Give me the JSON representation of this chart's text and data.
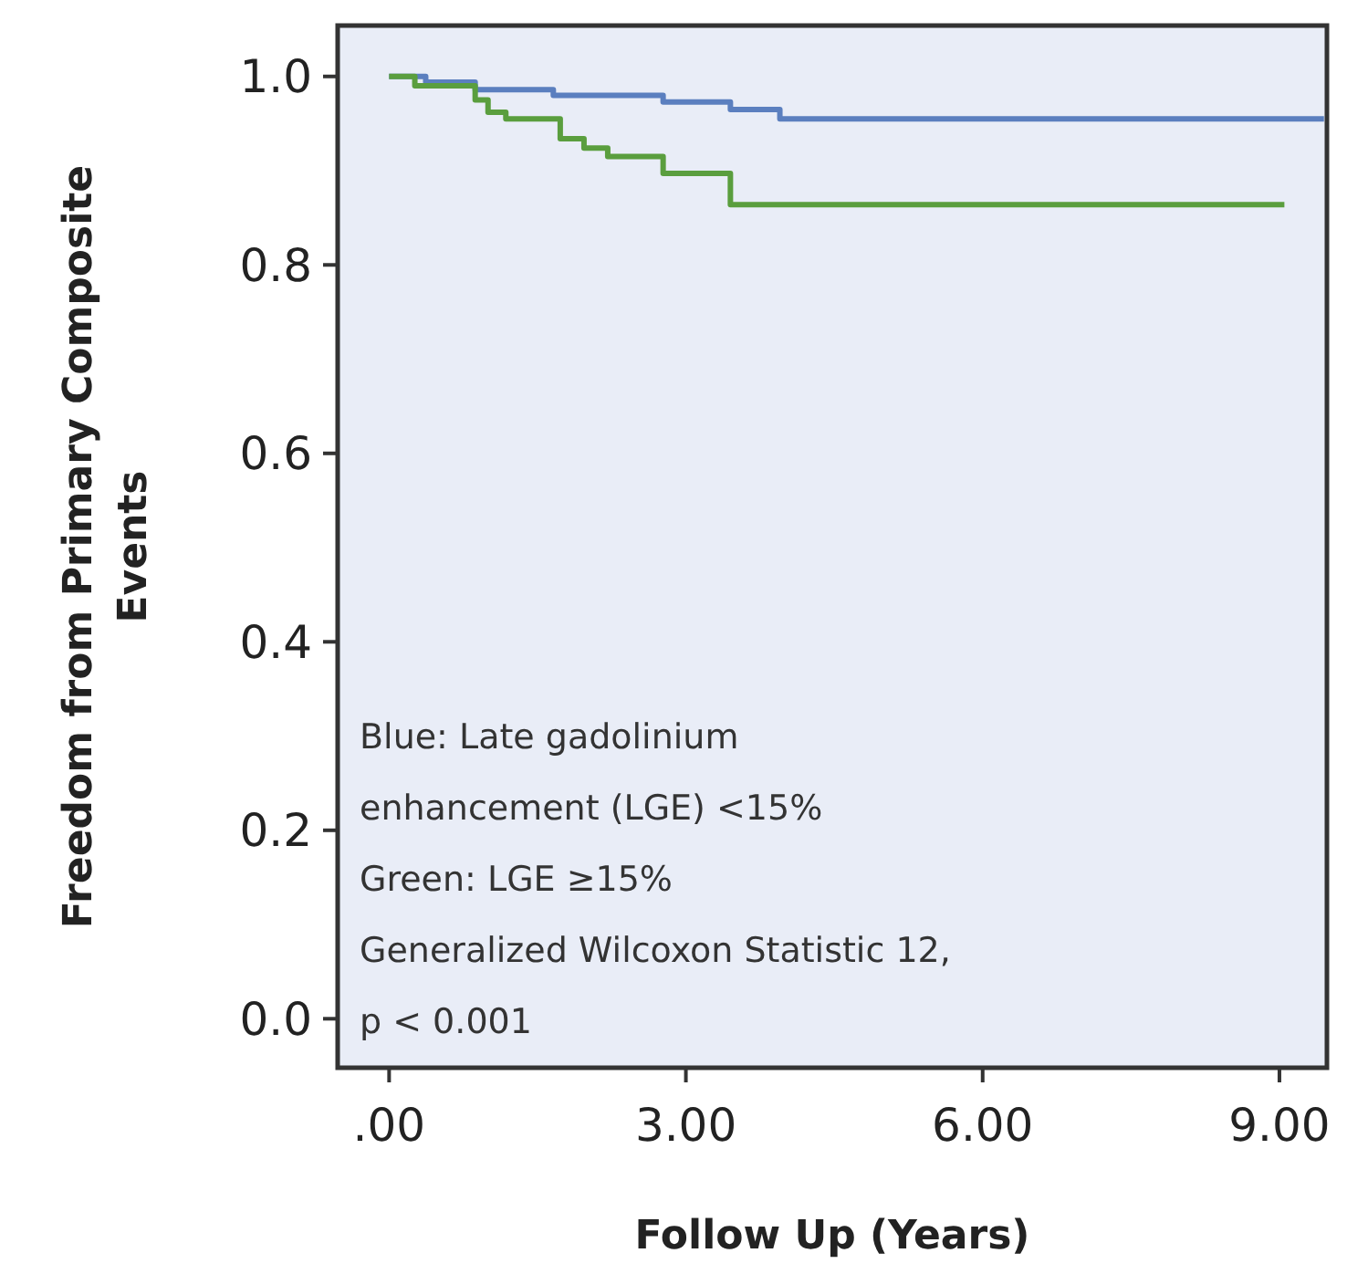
{
  "chart_data": {
    "type": "step",
    "xlabel": "Follow Up (Years)",
    "ylabel": "Freedom from Primary Composite Events",
    "xlim": [
      -0.52,
      9.48
    ],
    "ylim": [
      -0.052,
      1.054
    ],
    "xticks": [
      {
        "value": 0,
        "label": ".00"
      },
      {
        "value": 3,
        "label": "3.00"
      },
      {
        "value": 6,
        "label": "6.00"
      },
      {
        "value": 9,
        "label": "9.00"
      }
    ],
    "yticks": [
      {
        "value": 0,
        "label": "0.0"
      },
      {
        "value": 0.2,
        "label": "0.2"
      },
      {
        "value": 0.4,
        "label": "0.4"
      },
      {
        "value": 0.6,
        "label": "0.6"
      },
      {
        "value": 0.8,
        "label": "0.8"
      },
      {
        "value": 1,
        "label": "1.0"
      }
    ],
    "series": [
      {
        "color": "#5b7fbf",
        "x": [
          0,
          0.37,
          0.87,
          1.66,
          2.77,
          3.45,
          3.95,
          9.45
        ],
        "values": [
          1,
          0.994,
          0.986,
          0.98,
          0.973,
          0.965,
          0.955,
          0.955
        ]
      },
      {
        "color": "#5a9e3e",
        "x": [
          0,
          0.26,
          0.87,
          1.0,
          1.18,
          1.73,
          1.97,
          2.21,
          2.77,
          3.45,
          9.05
        ],
        "values": [
          1,
          0.99,
          0.975,
          0.962,
          0.955,
          0.934,
          0.924,
          0.915,
          0.897,
          0.864,
          0.864
        ]
      }
    ],
    "annotations": [
      "Blue: Late gadolinium",
      "enhancement  (LGE) <15%",
      "Green: LGE ≥15%",
      "Generalized Wilcoxon Statistic 12,",
      "p < 0.001"
    ]
  }
}
